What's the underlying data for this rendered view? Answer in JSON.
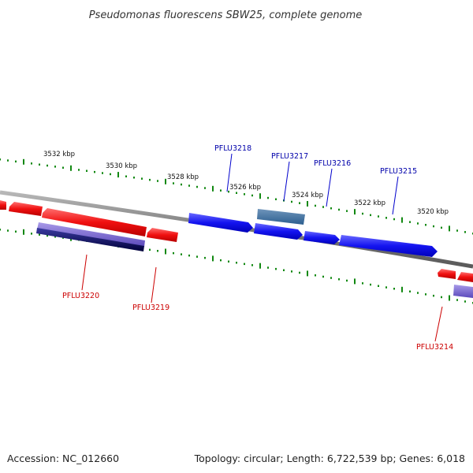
{
  "title": "Pseudomonas fluorescens SBW25, complete genome",
  "footer": {
    "accession": "Accession: NC_012660",
    "summary": "Topology: circular; Length: 6,722,539 bp; Genes: 6,018"
  },
  "scale_labels": [
    "3532 kbp",
    "3530 kbp",
    "3528 kbp",
    "3526 kbp",
    "3524 kbp",
    "3522 kbp",
    "3520 kbp"
  ],
  "gene_labels_forward": [
    "PFLU3218",
    "PFLU3217",
    "PFLU3216",
    "PFLU3215"
  ],
  "gene_labels_reverse": [
    "PFLU3220",
    "PFLU3219",
    "PFLU3214"
  ],
  "colors": {
    "backbone": "#888888",
    "forward_gene": "#1a1aff",
    "reverse_gene": "#ff1a1a",
    "tick": "#118811",
    "forward_label": "#0000aa",
    "reverse_label": "#cc0000"
  }
}
